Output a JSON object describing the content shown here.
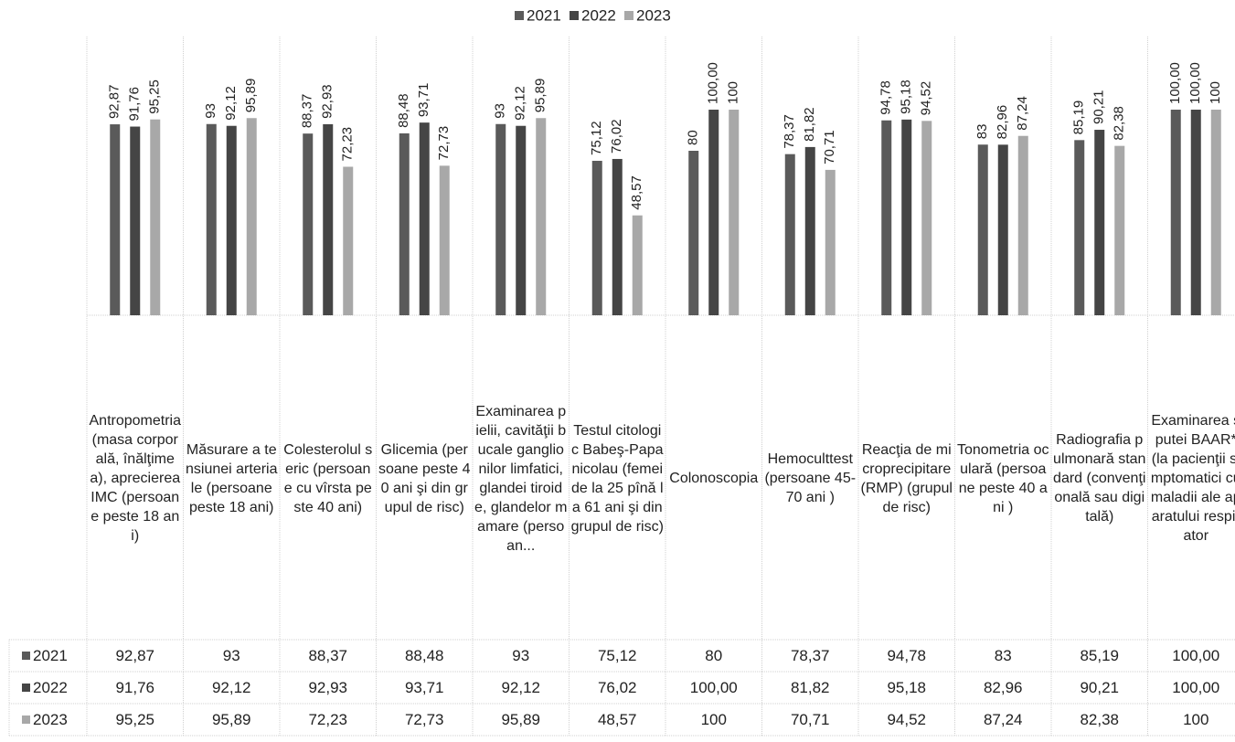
{
  "chart_data": {
    "type": "bar",
    "categories": [
      "Antropometria (masa corporală, înălţimea), aprecierea IMC (persoane peste 18 ani)",
      "Măsurare a tensiunei arteriale (persoane peste 18 ani)",
      "Colesterolul seric (persoane cu vîrsta peste 40 ani)",
      "Glicemia (persoane peste 40 ani şi din grupul de risc)",
      "Examinarea pielii, cavităţii bucale ganglionilor limfatici, glandei tiroide, glandelor mamare (persoan...",
      "Testul citologic Babeş-Papanicolau (femei de la 25 pînă la 61 ani şi din grupul de risc)",
      "Colonoscopia",
      "Hemoculttest (persoane 45-70 ani )",
      "Reacţia de microprecipitare (RMP) (grupul de risc)",
      "Tonometria oculară (persoane peste 40 ani )",
      "Radiografia pulmonară standard (convenţională sau digitală)",
      "Examinarea sputei BAAR* (la pacienţii simptomatici cu maladii ale aparatului respirator"
    ],
    "series": [
      {
        "name": "2021",
        "color": "#5a5a5a",
        "values": [
          92.87,
          93,
          88.37,
          88.48,
          93,
          75.12,
          80,
          78.37,
          94.78,
          83,
          85.19,
          100
        ],
        "value_labels": [
          "92,87",
          "93",
          "88,37",
          "88,48",
          "93",
          "75,12",
          "80",
          "78,37",
          "94,78",
          "83",
          "85,19",
          "100,00"
        ]
      },
      {
        "name": "2022",
        "color": "#454545",
        "values": [
          91.76,
          92.12,
          92.93,
          93.71,
          92.12,
          76.02,
          100,
          81.82,
          95.18,
          82.96,
          90.21,
          100
        ],
        "value_labels": [
          "91,76",
          "92,12",
          "92,93",
          "93,71",
          "92,12",
          "76,02",
          "100,00",
          "81,82",
          "95,18",
          "82,96",
          "90,21",
          "100,00"
        ]
      },
      {
        "name": "2023",
        "color": "#a8a8a8",
        "values": [
          95.25,
          95.89,
          72.23,
          72.73,
          95.89,
          48.57,
          100,
          70.71,
          94.52,
          87.24,
          82.38,
          100
        ],
        "value_labels": [
          "95,25",
          "95,89",
          "72,23",
          "72,73",
          "95,89",
          "48,57",
          "100",
          "70,71",
          "94,52",
          "87,24",
          "82,38",
          "100"
        ]
      }
    ],
    "ylim": [
      0,
      100
    ],
    "legend": "top"
  }
}
